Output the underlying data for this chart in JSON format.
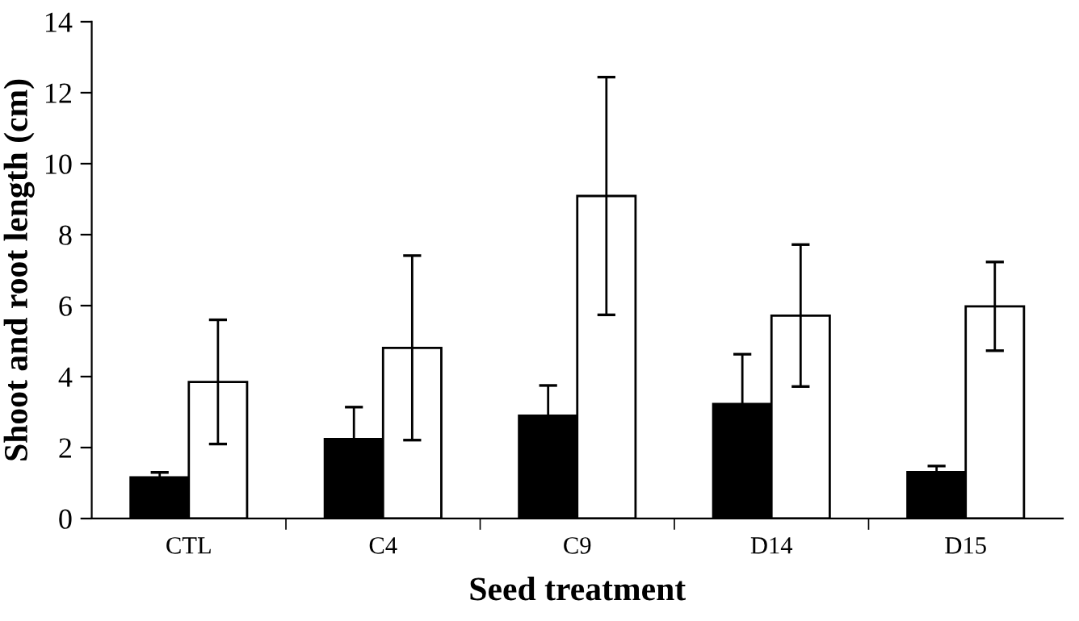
{
  "chart_data": {
    "type": "bar",
    "xlabel": "Seed treatment",
    "ylabel": "Shoot and root length (cm)",
    "categories": [
      "CTL",
      "C4",
      "C9",
      "D14",
      "D15"
    ],
    "series": [
      {
        "color": "#000000",
        "values": [
          1.16,
          2.24,
          2.9,
          3.23,
          1.31
        ],
        "errors": [
          0.14,
          0.9,
          0.85,
          1.4,
          0.17
        ]
      },
      {
        "color": "#ffffff",
        "values": [
          3.85,
          4.81,
          9.09,
          5.72,
          5.98
        ],
        "errors": [
          1.75,
          2.6,
          3.35,
          2.0,
          1.25
        ]
      }
    ],
    "ylim": [
      0,
      14
    ],
    "yticks": [
      0,
      2,
      4,
      6,
      8,
      10,
      12,
      14
    ],
    "grid": false,
    "legend": false
  }
}
